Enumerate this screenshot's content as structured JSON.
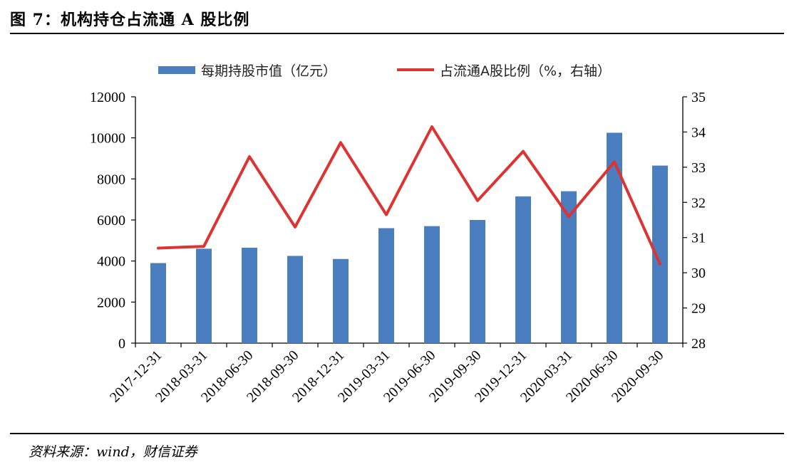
{
  "figure": {
    "title": "图 7：机构持仓占流通 A 股比例",
    "source": "资料来源：wind，财信证券"
  },
  "colors": {
    "bar": "#4a7ebf",
    "line": "#dd3333"
  },
  "chart_data": {
    "type": "bar",
    "categories": [
      "2017-12-31",
      "2018-03-31",
      "2018-06-30",
      "2018-09-30",
      "2018-12-31",
      "2019-03-31",
      "2019-06-30",
      "2019-09-30",
      "2019-12-31",
      "2020-03-31",
      "2020-06-30",
      "2020-09-30"
    ],
    "series": [
      {
        "name": "每期持股市值（亿元）",
        "type": "bar",
        "axis": "left",
        "values": [
          3900,
          4600,
          4650,
          4250,
          4100,
          5600,
          5700,
          6000,
          7150,
          7400,
          10250,
          8650
        ]
      },
      {
        "name": "占流通A股比例（%，右轴）",
        "type": "line",
        "axis": "right",
        "values": [
          30.7,
          30.75,
          33.3,
          31.3,
          33.7,
          31.65,
          34.15,
          32.05,
          33.45,
          31.6,
          33.15,
          30.25
        ]
      }
    ],
    "y_left": {
      "min": 0,
      "max": 12000,
      "ticks": [
        "0",
        "2000",
        "4000",
        "6000",
        "8000",
        "10000",
        "12000"
      ]
    },
    "y_right": {
      "min": 28,
      "max": 35,
      "ticks": [
        "28",
        "29",
        "30",
        "31",
        "32",
        "33",
        "34",
        "35"
      ]
    },
    "legend_position": "top-center",
    "grid": false
  }
}
